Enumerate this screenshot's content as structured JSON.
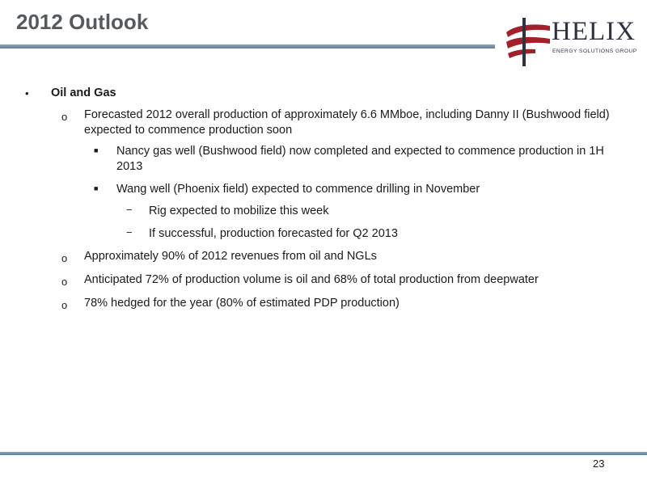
{
  "slide": {
    "title": "2012 Outlook",
    "page_number": "23",
    "logo": {
      "name": "HELIX",
      "tagline": "ENERGY SOLUTIONS GROUP"
    }
  },
  "bullets": {
    "heading": "Oil and Gas",
    "items": [
      "Forecasted 2012 overall production of approximately 6.6 MMboe, including Danny II (Bushwood field) expected to commence production soon",
      "Nancy gas well (Bushwood field) now completed and expected to commence production in 1H 2013",
      "Wang well (Phoenix field) expected to commence drilling in November",
      "Rig expected to mobilize this week",
      "If successful, production forecasted for Q2 2013",
      "Approximately 90% of 2012 revenues from oil and NGLs",
      "Anticipated 72% of production volume is oil and 68% of total production from deepwater",
      "78% hedged for the year (80% of estimated PDP production)"
    ]
  }
}
